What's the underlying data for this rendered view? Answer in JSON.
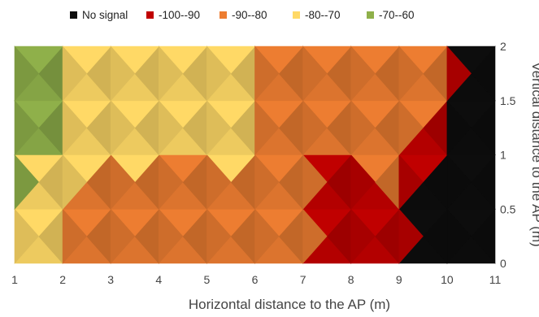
{
  "chart_data": {
    "type": "contour",
    "title": "",
    "xlabel": "Horizontal distance to the AP (m)",
    "ylabel": "Vertical distance to the AP (m)",
    "xlim": [
      1,
      11
    ],
    "ylim": [
      0,
      2
    ],
    "x_ticks": [
      "1",
      "2",
      "3",
      "4",
      "5",
      "6",
      "7",
      "8",
      "9",
      "10",
      "11"
    ],
    "y_ticks": [
      "0",
      "0.5",
      "1",
      "1.5",
      "2"
    ],
    "legend_position": "top",
    "legend": [
      {
        "label": "No signal",
        "color": "#0d0d0d"
      },
      {
        "label": "-100--90",
        "color": "#c00000"
      },
      {
        "label": "-90--80",
        "color": "#ed7d31"
      },
      {
        "label": "-80--70",
        "color": "#ffd966"
      },
      {
        "label": "-70--60",
        "color": "#8fb04a"
      }
    ],
    "x": [
      1,
      2,
      3,
      4,
      5,
      6,
      7,
      8,
      9,
      10,
      11
    ],
    "y": [
      0,
      0.5,
      1,
      1.5,
      2
    ],
    "z": [
      [
        -80,
        -78,
        -86,
        -92,
        -89,
        -88,
        -90,
        -94,
        -93,
        -110,
        -110
      ],
      [
        -66,
        -80,
        -84,
        -85,
        -82,
        -83,
        -87,
        -93,
        -92,
        -110,
        -110
      ],
      [
        -66,
        -74,
        -78,
        -79,
        -80,
        -78,
        -90,
        -90,
        -86,
        -110,
        -110
      ],
      [
        -64,
        -67,
        -74,
        -78,
        -76,
        -80,
        -82,
        -84,
        -82,
        -92,
        -110
      ],
      [
        -64,
        -72,
        -74,
        -74,
        -73,
        -82,
        -84,
        -84,
        -84,
        -90,
        -110
      ]
    ]
  }
}
